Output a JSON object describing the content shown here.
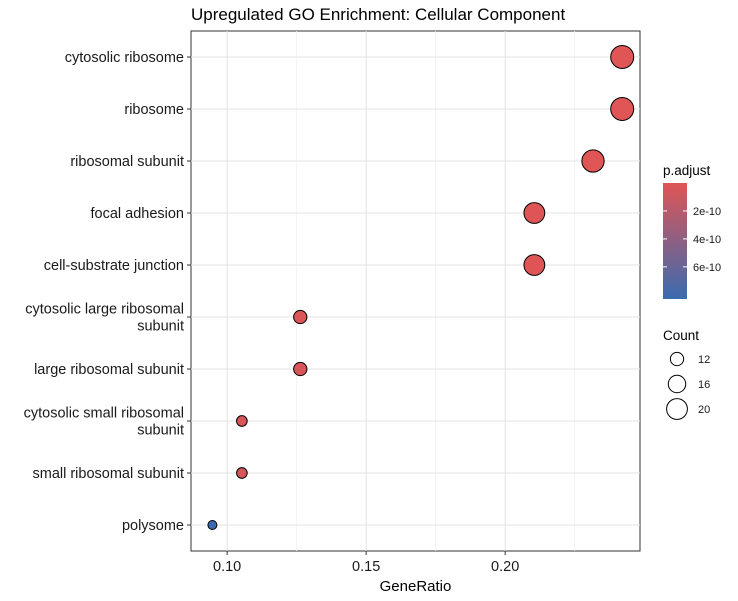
{
  "chart_data": {
    "type": "scatter",
    "title": "Upregulated GO Enrichment: Cellular Component",
    "xlabel": "GeneRatio",
    "ylabel": "",
    "xlim": [
      0.087,
      0.2485
    ],
    "x_ticks": [
      0.1,
      0.15,
      0.2
    ],
    "x_tick_labels": [
      "0.10",
      "0.15",
      "0.20"
    ],
    "grid": true,
    "categories": [
      "cytosolic ribosome",
      "ribosome",
      "ribosomal subunit",
      "focal adhesion",
      "cell-substrate junction",
      "cytosolic large ribosomal subunit",
      "large ribosomal subunit",
      "cytosolic small ribosomal subunit",
      "small ribosomal subunit",
      "polysome"
    ],
    "points": [
      {
        "term": "cytosolic ribosome",
        "gene_ratio": 0.2421,
        "count": 23,
        "p_adjust": 1e-12
      },
      {
        "term": "ribosome",
        "gene_ratio": 0.2421,
        "count": 23,
        "p_adjust": 1e-12
      },
      {
        "term": "ribosomal subunit",
        "gene_ratio": 0.2316,
        "count": 22,
        "p_adjust": 2e-12
      },
      {
        "term": "focal adhesion",
        "gene_ratio": 0.2105,
        "count": 20,
        "p_adjust": 5e-12
      },
      {
        "term": "cell-substrate junction",
        "gene_ratio": 0.2105,
        "count": 20,
        "p_adjust": 5e-12
      },
      {
        "term": "cytosolic large ribosomal subunit",
        "gene_ratio": 0.1263,
        "count": 12,
        "p_adjust": 3e-11
      },
      {
        "term": "large ribosomal subunit",
        "gene_ratio": 0.1263,
        "count": 12,
        "p_adjust": 4e-11
      },
      {
        "term": "cytosolic small ribosomal subunit",
        "gene_ratio": 0.1053,
        "count": 10,
        "p_adjust": 5e-11
      },
      {
        "term": "small ribosomal subunit",
        "gene_ratio": 0.1053,
        "count": 10,
        "p_adjust": 6e-11
      },
      {
        "term": "polysome",
        "gene_ratio": 0.0947,
        "count": 9,
        "p_adjust": 8.3e-10
      }
    ],
    "color_legend": {
      "title": "p.adjust",
      "ticks": [
        2e-10,
        4e-10,
        6e-10
      ],
      "tick_labels": [
        "2e-10",
        "4e-10",
        "6e-10"
      ],
      "range": [
        0,
        8.3e-10
      ],
      "low_color": "#e05555",
      "high_color": "#3a6bb0"
    },
    "size_legend": {
      "title": "Count",
      "values": [
        12,
        16,
        20
      ],
      "labels": [
        "12",
        "16",
        "20"
      ]
    },
    "size_range": [
      9,
      23
    ],
    "legend_position": "right"
  }
}
